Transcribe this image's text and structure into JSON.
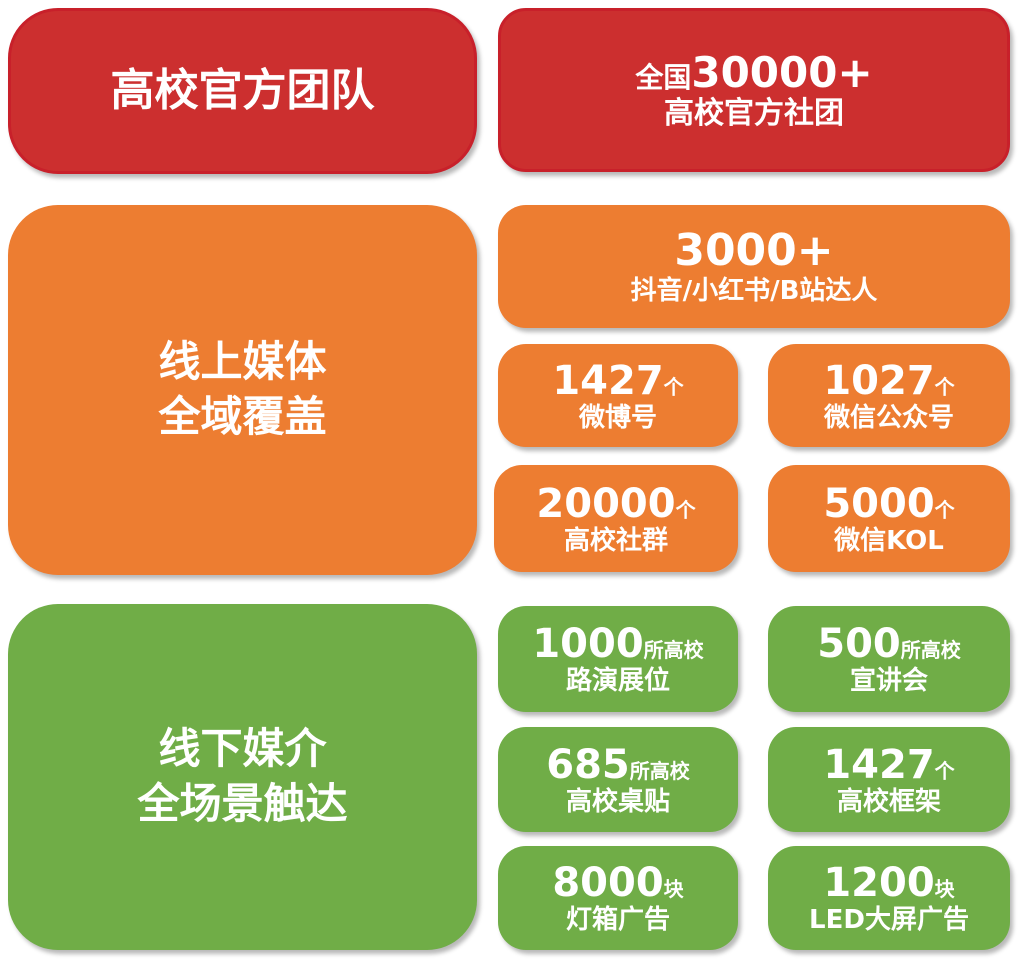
{
  "colors": {
    "red": "#cc2f2f",
    "orange": "#ed7d31",
    "green": "#70ad47",
    "text": "#ffffff"
  },
  "team": {
    "title": "高校官方团队",
    "stat": {
      "prefix": "全国",
      "number": "30000+",
      "label": "高校官方社团"
    }
  },
  "online": {
    "title_line1": "线上媒体",
    "title_line2": "全域覆盖",
    "wide": {
      "number": "3000+",
      "label": "抖音/小红书/B站达人"
    },
    "items": [
      {
        "number": "1427",
        "unit": "个",
        "label": "微博号"
      },
      {
        "number": "1027",
        "unit": "个",
        "label": "微信公众号"
      },
      {
        "number": "20000",
        "unit": "个",
        "label": "高校社群"
      },
      {
        "number": "5000",
        "unit": "个",
        "label": "微信KOL"
      }
    ]
  },
  "offline": {
    "title_line1": "线下媒介",
    "title_line2": "全场景触达",
    "items": [
      {
        "number": "1000",
        "unit": "所高校",
        "label": "路演展位"
      },
      {
        "number": "500",
        "unit": "所高校",
        "label": "宣讲会"
      },
      {
        "number": "685",
        "unit": "所高校",
        "label": "高校桌贴"
      },
      {
        "number": "1427",
        "unit": "个",
        "label": "高校框架"
      },
      {
        "number": "8000",
        "unit": "块",
        "label": "灯箱广告"
      },
      {
        "number": "1200",
        "unit": "块",
        "label": "LED大屏广告"
      }
    ]
  }
}
